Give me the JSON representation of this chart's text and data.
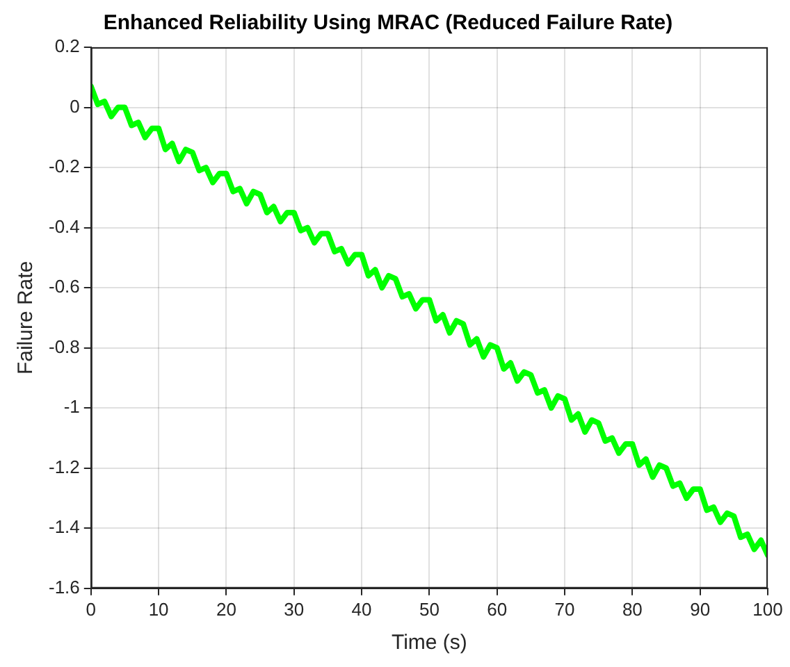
{
  "chart_data": {
    "type": "line",
    "title": "Enhanced Reliability Using MRAC (Reduced Failure Rate)",
    "xlabel": "Time (s)",
    "ylabel": "Failure Rate",
    "x": [
      0,
      1,
      2,
      3,
      4,
      5,
      6,
      7,
      8,
      9,
      10,
      11,
      12,
      13,
      14,
      15,
      16,
      17,
      18,
      19,
      20,
      21,
      22,
      23,
      24,
      25,
      26,
      27,
      28,
      29,
      30,
      31,
      32,
      33,
      34,
      35,
      36,
      37,
      38,
      39,
      40,
      41,
      42,
      43,
      44,
      45,
      46,
      47,
      48,
      49,
      50,
      51,
      52,
      53,
      54,
      55,
      56,
      57,
      58,
      59,
      60,
      61,
      62,
      63,
      64,
      65,
      66,
      67,
      68,
      69,
      70,
      71,
      72,
      73,
      74,
      75,
      76,
      77,
      78,
      79,
      80,
      81,
      82,
      83,
      84,
      85,
      86,
      87,
      88,
      89,
      90,
      91,
      92,
      93,
      94,
      95,
      96,
      97,
      98,
      99,
      100
    ],
    "series": [
      {
        "color": "#00ff00",
        "values": [
          0.07,
          0.01,
          0.02,
          -0.03,
          0.0,
          0.0,
          -0.06,
          -0.05,
          -0.1,
          -0.07,
          -0.07,
          -0.14,
          -0.12,
          -0.18,
          -0.14,
          -0.15,
          -0.21,
          -0.2,
          -0.25,
          -0.22,
          -0.22,
          -0.28,
          -0.27,
          -0.32,
          -0.28,
          -0.29,
          -0.35,
          -0.33,
          -0.38,
          -0.35,
          -0.35,
          -0.41,
          -0.4,
          -0.45,
          -0.42,
          -0.42,
          -0.48,
          -0.47,
          -0.52,
          -0.49,
          -0.49,
          -0.56,
          -0.54,
          -0.6,
          -0.56,
          -0.57,
          -0.63,
          -0.62,
          -0.67,
          -0.64,
          -0.64,
          -0.71,
          -0.69,
          -0.75,
          -0.71,
          -0.72,
          -0.79,
          -0.77,
          -0.83,
          -0.79,
          -0.8,
          -0.87,
          -0.85,
          -0.91,
          -0.88,
          -0.89,
          -0.95,
          -0.94,
          -1.0,
          -0.96,
          -0.97,
          -1.04,
          -1.02,
          -1.08,
          -1.04,
          -1.05,
          -1.11,
          -1.1,
          -1.15,
          -1.12,
          -1.12,
          -1.19,
          -1.17,
          -1.23,
          -1.19,
          -1.2,
          -1.26,
          -1.25,
          -1.3,
          -1.27,
          -1.27,
          -1.34,
          -1.33,
          -1.38,
          -1.35,
          -1.36,
          -1.43,
          -1.42,
          -1.47,
          -1.44,
          -1.49
        ]
      }
    ],
    "xlim": [
      0,
      100
    ],
    "xticks": [
      0,
      10,
      20,
      30,
      40,
      50,
      60,
      70,
      80,
      90,
      100
    ],
    "ylim": [
      -1.6,
      0.2
    ],
    "yticks": [
      -1.6,
      -1.4,
      -1.2,
      -1,
      -0.8,
      -0.6,
      -0.4,
      -0.2,
      0,
      0.2
    ],
    "grid": true,
    "legend": false,
    "marker": "none",
    "line_style": "solid"
  }
}
